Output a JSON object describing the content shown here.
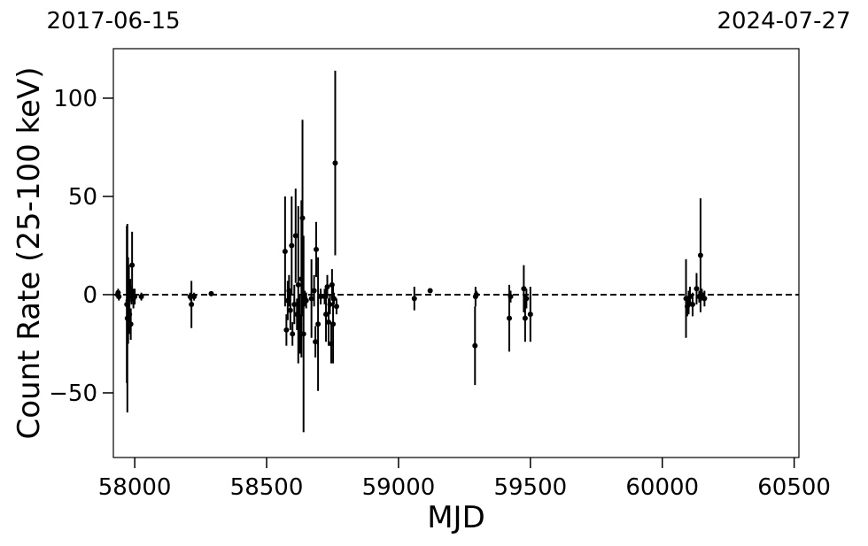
{
  "chart_data": {
    "type": "errorbar",
    "xlabel": "MJD",
    "ylabel": "Count Rate (25-100 keV)",
    "xlim": [
      57919,
      60518
    ],
    "ylim": [
      -82.9,
      125.2
    ],
    "xticks": [
      58000,
      58500,
      59000,
      59500,
      60000,
      60500
    ],
    "yticks": [
      {
        "value": -50,
        "label": "−50"
      },
      0,
      50,
      100
    ],
    "x2ticks": [
      {
        "value": 57919,
        "label": "2017-06-15"
      },
      {
        "value": 60518,
        "label": "2024-07-27"
      }
    ],
    "hline": 0,
    "color": "#000000",
    "x": [
      57935,
      57937,
      57940,
      57970,
      57972,
      57975,
      57978,
      57980,
      57983,
      57985,
      57988,
      57990,
      57995,
      58000,
      58025,
      58210,
      58215,
      58225,
      58290,
      58570,
      58575,
      58580,
      58585,
      58590,
      58595,
      58598,
      58605,
      58610,
      58615,
      58620,
      58625,
      58628,
      58632,
      58636,
      58640,
      58645,
      58650,
      58670,
      58680,
      58685,
      58688,
      58695,
      58705,
      58720,
      58725,
      58730,
      58735,
      58740,
      58745,
      58748,
      58752,
      58755,
      58760,
      58765,
      59060,
      59120,
      59290,
      59292,
      59295,
      59420,
      59425,
      59475,
      59480,
      59485,
      59500,
      60090,
      60095,
      60100,
      60105,
      60115,
      60130,
      60140,
      60145,
      60150,
      60160
    ],
    "y": [
      0,
      1,
      -1,
      -5,
      -12,
      -3,
      0,
      -10,
      3,
      -15,
      -1,
      15,
      -2,
      -1,
      -1,
      -1,
      -5,
      -1,
      0.5,
      22,
      -18,
      -3,
      2,
      -8,
      25,
      -20,
      -5,
      30,
      -10,
      5,
      -15,
      -20,
      8,
      39,
      -20,
      -2,
      -3,
      -2,
      2,
      -24,
      23,
      -15,
      -1,
      -1,
      -10,
      4,
      -14,
      -5,
      -25,
      5,
      -15,
      -2,
      67,
      -6,
      -2,
      2,
      -26,
      -1,
      0,
      -12,
      -1,
      3,
      -12,
      -2,
      -10,
      -2,
      -6,
      -4,
      -1,
      -5,
      3,
      -1,
      20,
      0,
      -2
    ],
    "yerr": [
      2,
      2,
      2,
      40,
      48,
      22,
      15,
      10,
      5,
      8,
      4,
      17,
      5,
      4,
      2,
      2,
      12,
      2,
      1,
      28,
      8,
      10,
      8,
      10,
      25,
      6,
      10,
      24,
      8,
      40,
      15,
      10,
      40,
      50,
      50,
      4,
      4,
      20,
      8,
      8,
      14,
      34,
      4,
      4,
      14,
      6,
      12,
      5,
      10,
      8,
      20,
      3,
      47,
      4,
      6,
      1,
      20,
      5,
      2,
      17,
      3,
      12,
      12,
      5,
      14,
      20,
      5,
      6,
      5,
      6,
      8,
      3,
      29,
      3,
      4
    ]
  }
}
